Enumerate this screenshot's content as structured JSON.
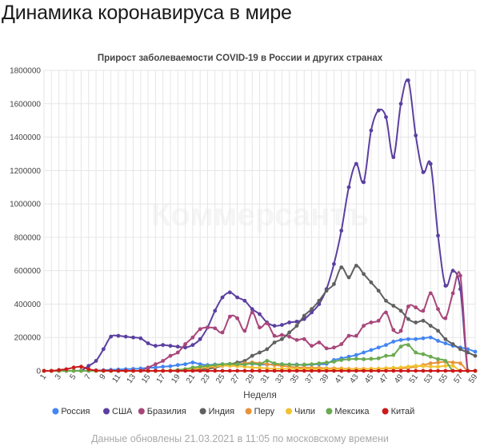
{
  "page": {
    "title": "Динамика коронавируса в мире",
    "footer": "Данные обновлены 21.03.2021 в 11:05 по московскому времени",
    "watermark": "Коммерсантъ"
  },
  "chart_data": {
    "type": "line",
    "title": "Прирост заболеваемости COVID-19 в России и других странах",
    "xlabel": "Неделя",
    "ylabel": "",
    "x": [
      1,
      2,
      3,
      4,
      5,
      6,
      7,
      8,
      9,
      10,
      11,
      12,
      13,
      14,
      15,
      16,
      17,
      18,
      19,
      20,
      21,
      22,
      23,
      24,
      25,
      26,
      27,
      28,
      29,
      30,
      31,
      32,
      33,
      34,
      35,
      36,
      37,
      38,
      39,
      40,
      41,
      42,
      43,
      44,
      45,
      46,
      47,
      48,
      49,
      50,
      51,
      52,
      53,
      54,
      55,
      56,
      57,
      58,
      59
    ],
    "x_tick_labels": [
      "1",
      "3",
      "5",
      "7",
      "9",
      "11",
      "13",
      "15",
      "17",
      "19",
      "21",
      "23",
      "25",
      "27",
      "29",
      "31",
      "33",
      "35",
      "37",
      "39",
      "41",
      "43",
      "45",
      "47",
      "49",
      "51",
      "53",
      "55",
      "57",
      "59"
    ],
    "ylim": [
      0,
      1800000
    ],
    "y_ticks": [
      "0",
      "200000",
      "400000",
      "600000",
      "800000",
      "1000000",
      "1200000",
      "1400000",
      "1600000",
      "1800000"
    ],
    "grid": true,
    "legend_position": "bottom",
    "series": [
      {
        "name": "Россия",
        "color": "#4285f4",
        "values": [
          0,
          0,
          0,
          0,
          0,
          50,
          300,
          1500,
          4000,
          6500,
          8000,
          10000,
          12000,
          14000,
          18000,
          20000,
          25000,
          28000,
          35000,
          40000,
          50000,
          40000,
          35000,
          38000,
          40000,
          42000,
          40000,
          42000,
          42000,
          38000,
          38000,
          40000,
          40000,
          38000,
          38000,
          35000,
          38000,
          40000,
          42000,
          65000,
          75000,
          85000,
          95000,
          110000,
          125000,
          140000,
          155000,
          175000,
          185000,
          190000,
          190000,
          195000,
          200000,
          180000,
          165000,
          150000,
          140000,
          130000,
          115000
        ]
      },
      {
        "name": "США",
        "color": "#5b3fa0",
        "values": [
          0,
          0,
          0,
          0,
          200,
          2000,
          30000,
          60000,
          130000,
          205000,
          210000,
          205000,
          200000,
          195000,
          165000,
          150000,
          155000,
          150000,
          145000,
          140000,
          155000,
          190000,
          260000,
          360000,
          440000,
          470000,
          440000,
          420000,
          370000,
          340000,
          290000,
          270000,
          275000,
          290000,
          295000,
          310000,
          350000,
          400000,
          490000,
          640000,
          840000,
          1100000,
          1240000,
          1130000,
          1440000,
          1560000,
          1520000,
          1280000,
          1600000,
          1740000,
          1410000,
          1190000,
          1240000,
          810000,
          510000,
          600000,
          490000,
          0,
          0
        ]
      },
      {
        "name": "Бразилия",
        "color": "#a8467a",
        "values": [
          0,
          0,
          0,
          0,
          0,
          0,
          0,
          0,
          0,
          0,
          0,
          0,
          0,
          0,
          20000,
          40000,
          60000,
          90000,
          110000,
          160000,
          200000,
          250000,
          260000,
          255000,
          230000,
          325000,
          315000,
          240000,
          350000,
          260000,
          285000,
          210000,
          215000,
          205000,
          185000,
          190000,
          150000,
          170000,
          135000,
          140000,
          160000,
          210000,
          210000,
          270000,
          290000,
          300000,
          350000,
          245000,
          240000,
          385000,
          380000,
          360000,
          465000,
          370000,
          315000,
          465000,
          570000,
          0,
          0
        ]
      },
      {
        "name": "Индия",
        "color": "#606060",
        "values": [
          0,
          0,
          0,
          0,
          0,
          0,
          0,
          0,
          0,
          0,
          0,
          0,
          0,
          0,
          0,
          0,
          0,
          0,
          0,
          2000,
          4000,
          8000,
          12000,
          20000,
          30000,
          40000,
          50000,
          60000,
          90000,
          110000,
          130000,
          170000,
          190000,
          230000,
          270000,
          330000,
          370000,
          420000,
          480000,
          520000,
          620000,
          560000,
          630000,
          580000,
          530000,
          480000,
          420000,
          390000,
          360000,
          310000,
          290000,
          300000,
          270000,
          240000,
          190000,
          160000,
          130000,
          110000,
          90000
        ]
      },
      {
        "name": "Перу",
        "color": "#e8923a",
        "values": [
          0,
          0,
          0,
          0,
          0,
          0,
          0,
          0,
          0,
          0,
          0,
          0,
          0,
          0,
          0,
          0,
          0,
          0,
          0,
          5000,
          10000,
          15000,
          20000,
          25000,
          30000,
          35000,
          40000,
          45000,
          50000,
          45000,
          40000,
          35000,
          30000,
          25000,
          20000,
          20000,
          18000,
          18000,
          15000,
          15000,
          14000,
          12000,
          12000,
          12000,
          12000,
          12000,
          13000,
          14000,
          15000,
          18000,
          25000,
          35000,
          45000,
          50000,
          55000,
          50000,
          45000,
          0,
          0
        ]
      },
      {
        "name": "Чили",
        "color": "#f2c230",
        "values": [
          0,
          0,
          0,
          0,
          0,
          0,
          0,
          0,
          0,
          0,
          0,
          0,
          0,
          0,
          0,
          0,
          0,
          2000,
          5000,
          10000,
          15000,
          20000,
          25000,
          30000,
          32000,
          30000,
          28000,
          25000,
          20000,
          18000,
          15000,
          12000,
          12000,
          12000,
          11000,
          11000,
          10000,
          10000,
          10000,
          10000,
          10000,
          10000,
          10000,
          10000,
          12000,
          14000,
          16000,
          18000,
          20000,
          25000,
          30000,
          28000,
          26000,
          25000,
          30000,
          30000,
          0,
          0,
          0
        ]
      },
      {
        "name": "Мексика",
        "color": "#6aaa50",
        "values": [
          0,
          0,
          0,
          0,
          0,
          0,
          0,
          0,
          0,
          0,
          0,
          0,
          0,
          0,
          0,
          0,
          0,
          0,
          5000,
          10000,
          20000,
          25000,
          30000,
          35000,
          40000,
          42000,
          40000,
          38000,
          45000,
          40000,
          60000,
          45000,
          40000,
          38000,
          35000,
          38000,
          40000,
          45000,
          50000,
          55000,
          65000,
          70000,
          72000,
          70000,
          72000,
          75000,
          90000,
          95000,
          145000,
          155000,
          110000,
          100000,
          85000,
          70000,
          60000,
          0,
          0,
          0,
          0
        ]
      },
      {
        "name": "Китай",
        "color": "#cc1a1a",
        "values": [
          0,
          0,
          5000,
          10000,
          20000,
          25000,
          10000,
          3000,
          1000,
          500,
          200,
          200,
          100,
          100,
          100,
          100,
          100,
          100,
          100,
          100,
          100,
          100,
          100,
          100,
          100,
          100,
          100,
          100,
          100,
          100,
          100,
          100,
          100,
          100,
          100,
          100,
          100,
          100,
          100,
          100,
          100,
          100,
          100,
          100,
          100,
          100,
          100,
          100,
          100,
          100,
          100,
          100,
          100,
          100,
          100,
          100,
          100,
          100,
          100
        ]
      }
    ]
  }
}
